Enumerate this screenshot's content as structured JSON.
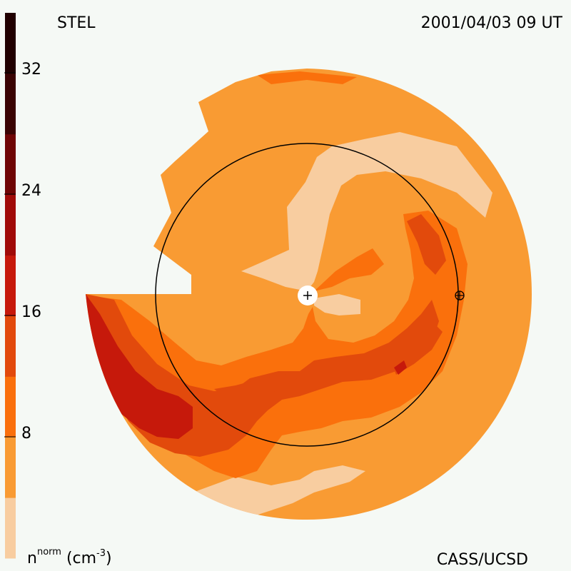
{
  "header": {
    "instrument": "STEL",
    "timestamp": "2001/04/03 09 UT"
  },
  "footer": {
    "quantity_base": "n",
    "quantity_sup": "norm",
    "unit_open": "(cm",
    "unit_sup": "-3",
    "unit_close": ")",
    "credit": "CASS/UCSD"
  },
  "colorbar": {
    "tick_labels": [
      "8",
      "16",
      "24",
      "32"
    ],
    "colors": [
      "#f8cda0",
      "#f99b33",
      "#fa700c",
      "#e24a0c",
      "#c6190b",
      "#a00b08",
      "#6f0505",
      "#3a0303",
      "#200000"
    ]
  },
  "colors": {
    "background": "#f5f9f5",
    "level_pale": "#f8cda0",
    "level_base": "#f99b33",
    "level_mid": "#fa700c",
    "level_high": "#e24a0c",
    "level_peak": "#c6190b",
    "level_max": "#a00b08"
  },
  "icons": {
    "sun_marker": "sun-plus-icon",
    "earth_marker": "earth-crossed-circle-icon"
  }
}
